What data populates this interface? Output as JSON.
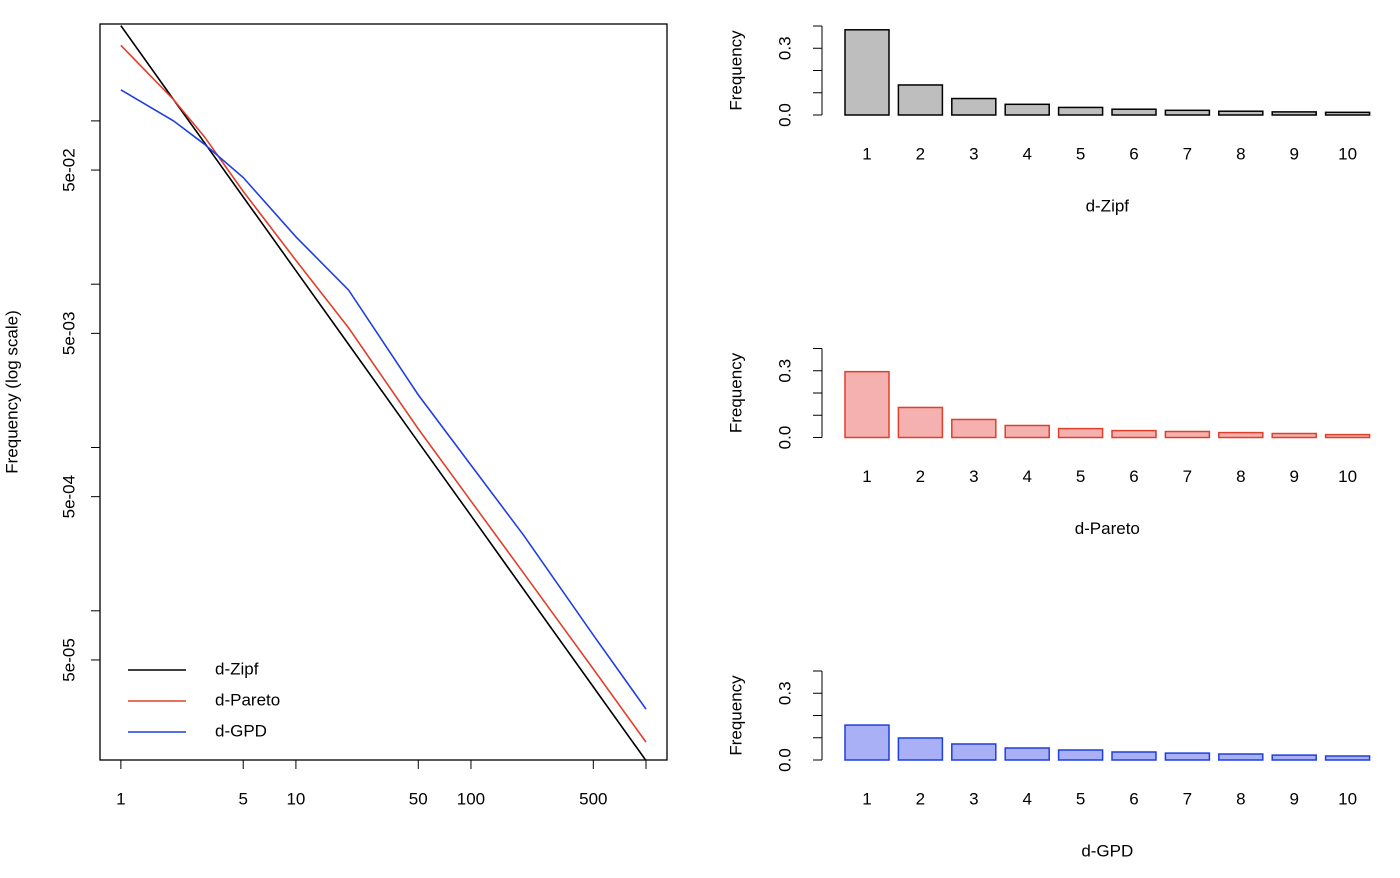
{
  "chart_data": [
    {
      "type": "line",
      "ylabel": "Frequency (log scale)",
      "x": [
        1,
        2,
        3,
        5,
        10,
        20,
        50,
        100,
        200,
        500,
        1000
      ],
      "series": [
        {
          "name": "d-Zipf",
          "color": "#000000",
          "values": [
            0.383,
            0.135,
            0.0737,
            0.0342,
            0.0121,
            0.00428,
            0.00108,
            0.000383,
            0.000135,
            3.42e-05,
            1.21e-05
          ]
        },
        {
          "name": "d-Pareto",
          "color": "#e0402a",
          "values": [
            0.29,
            0.135,
            0.08,
            0.037,
            0.014,
            0.0054,
            0.0013,
            0.00047,
            0.00017,
            4.4e-05,
            1.57e-05
          ]
        },
        {
          "name": "d-GPD",
          "color": "#1f3fe0",
          "values": [
            0.155,
            0.1,
            0.072,
            0.045,
            0.0195,
            0.0092,
            0.0021,
            0.00078,
            0.00029,
            7.1e-05,
            2.5e-05
          ]
        }
      ],
      "xlog": true,
      "ylog": true,
      "xlim": [
        0.76,
        1318
      ],
      "ylim": [
        1.22e-05,
        0.392
      ],
      "xticks": [
        1,
        5,
        10,
        50,
        100,
        500
      ],
      "xticks_minor": [
        1000
      ],
      "yticks": [
        {
          "value": 0.05,
          "label": "5e-02"
        },
        {
          "value": 0.005,
          "label": "5e-03"
        },
        {
          "value": 0.0005,
          "label": "5e-04"
        },
        {
          "value": 5e-05,
          "label": "5e-05"
        }
      ],
      "yticks_minor": [
        0.1,
        0.01,
        0.001,
        0.0001
      ],
      "legend": "bottomleft"
    },
    {
      "type": "bar",
      "xlabel": "d-Zipf",
      "ylabel": "Frequency",
      "categories": [
        "1",
        "2",
        "3",
        "4",
        "5",
        "6",
        "7",
        "8",
        "9",
        "10"
      ],
      "values": [
        0.383,
        0.135,
        0.074,
        0.048,
        0.034,
        0.026,
        0.021,
        0.017,
        0.014,
        0.012
      ],
      "color": "#bebebe",
      "edgecolor": "#000000",
      "ylim": [
        0,
        0.4
      ],
      "yticks": [
        {
          "value": 0,
          "label": "0.0"
        },
        {
          "value": 0.3,
          "label": "0.3"
        }
      ],
      "yticks_minor": [
        0.1,
        0.2,
        0.4
      ]
    },
    {
      "type": "bar",
      "xlabel": "d-Pareto",
      "ylabel": "Frequency",
      "categories": [
        "1",
        "2",
        "3",
        "4",
        "5",
        "6",
        "7",
        "8",
        "9",
        "10"
      ],
      "values": [
        0.296,
        0.135,
        0.081,
        0.054,
        0.04,
        0.031,
        0.027,
        0.022,
        0.018,
        0.013
      ],
      "color": "#f5b0b0",
      "edgecolor": "#e0402a",
      "ylim": [
        0,
        0.4
      ],
      "yticks": [
        {
          "value": 0,
          "label": "0.0"
        },
        {
          "value": 0.3,
          "label": "0.3"
        }
      ],
      "yticks_minor": [
        0.1,
        0.2,
        0.4
      ]
    },
    {
      "type": "bar",
      "xlabel": "d-GPD",
      "ylabel": "Frequency",
      "categories": [
        "1",
        "2",
        "3",
        "4",
        "5",
        "6",
        "7",
        "8",
        "9",
        "10"
      ],
      "values": [
        0.157,
        0.099,
        0.072,
        0.054,
        0.045,
        0.036,
        0.031,
        0.027,
        0.022,
        0.018
      ],
      "color": "#aab0f5",
      "edgecolor": "#1f3fe0",
      "ylim": [
        0,
        0.4
      ],
      "yticks": [
        {
          "value": 0,
          "label": "0.0"
        },
        {
          "value": 0.3,
          "label": "0.3"
        }
      ],
      "yticks_minor": [
        0.1,
        0.2,
        0.4
      ]
    }
  ]
}
